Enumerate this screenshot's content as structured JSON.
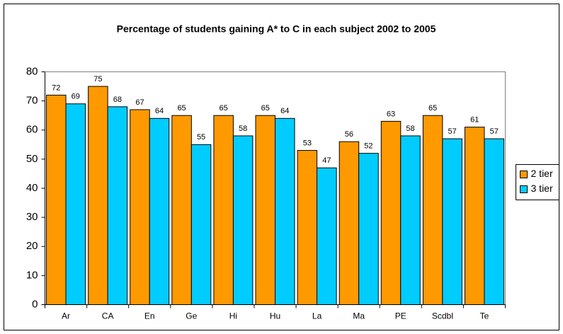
{
  "chart_data": {
    "type": "bar",
    "title": "Percentage of students gaining A* to C in each subject 2002 to 2005",
    "categories": [
      "Ar",
      "CA",
      "En",
      "Ge",
      "Hi",
      "Hu",
      "La",
      "Ma",
      "PE",
      "Scdbl",
      "Te"
    ],
    "series": [
      {
        "name": "2 tier",
        "color": "#ff9900",
        "values": [
          72,
          75,
          67,
          65,
          65,
          65,
          53,
          56,
          63,
          65,
          61
        ]
      },
      {
        "name": "3 tier",
        "color": "#00ccff",
        "values": [
          69,
          68,
          64,
          55,
          58,
          64,
          47,
          52,
          58,
          57,
          57
        ]
      }
    ],
    "ylim": [
      0,
      80
    ],
    "yticks": [
      0,
      10,
      20,
      30,
      40,
      50,
      60,
      70,
      80
    ],
    "grid": false,
    "legend": "right"
  }
}
